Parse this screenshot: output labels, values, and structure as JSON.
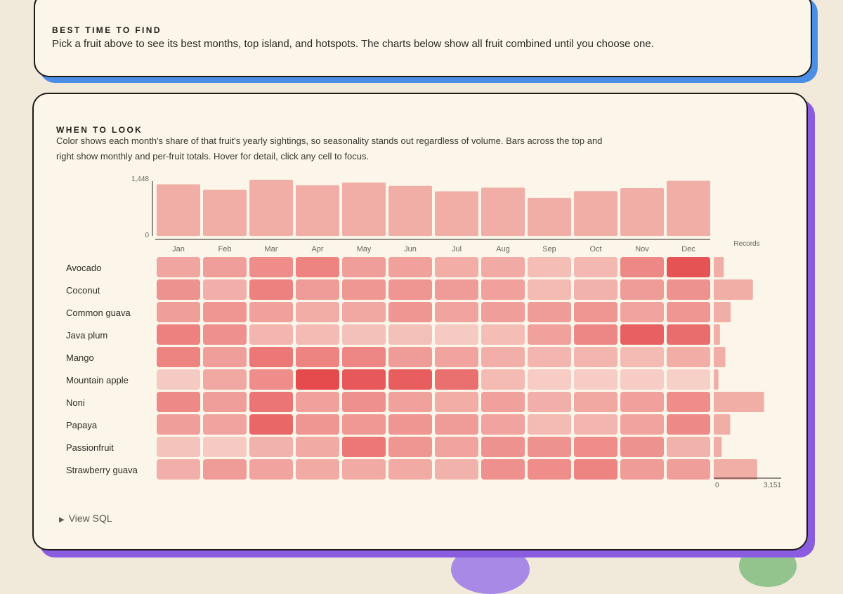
{
  "top_card": {
    "eyebrow": "BEST TIME TO FIND",
    "text": "Pick a fruit above to see its best months, top island, and hotspots. The charts below show all fruit combined until you choose one."
  },
  "main_card": {
    "eyebrow": "WHEN TO LOOK",
    "description": "Color shows each month's share of that fruit's yearly sightings, so seasonality stands out regardless of volume. Bars across the top and right show monthly and per-fruit totals. Hover for detail, click any cell to focus.",
    "view_sql_label": "View SQL"
  },
  "colors": {
    "bar": "#f0aea6",
    "cell_low": "#f7d8cf",
    "cell_high": "#e5474a",
    "axis": "#2a2722",
    "tick_text": "#6a665f",
    "top_card_shadow": "#4b8ee6",
    "main_card_shadow": "#8a5ce0"
  },
  "chart_data": {
    "type": "heatmap",
    "months": [
      "Jan",
      "Feb",
      "Mar",
      "Apr",
      "May",
      "Jun",
      "Jul",
      "Aug",
      "Sep",
      "Oct",
      "Nov",
      "Dec"
    ],
    "fruits": [
      "Avocado",
      "Coconut",
      "Common guava",
      "Java plum",
      "Mango",
      "Mountain apple",
      "Noni",
      "Papaya",
      "Passionfruit",
      "Strawberry guava"
    ],
    "month_totals": {
      "values": [
        1330,
        1190,
        1448,
        1305,
        1375,
        1290,
        1150,
        1245,
        980,
        1155,
        1230,
        1420
      ],
      "ylim": [
        0,
        1448
      ],
      "tick_labels": [
        "0",
        "1,448"
      ]
    },
    "fruit_totals": {
      "label": "Records",
      "values": [
        470,
        1830,
        790,
        290,
        540,
        220,
        2350,
        770,
        370,
        2030
      ],
      "xlim": [
        0,
        3151
      ],
      "tick_labels": [
        "0",
        "3,151"
      ]
    },
    "share_intensity": [
      [
        0.35,
        0.4,
        0.52,
        0.58,
        0.4,
        0.38,
        0.3,
        0.32,
        0.18,
        0.22,
        0.55,
        0.92
      ],
      [
        0.48,
        0.28,
        0.6,
        0.42,
        0.45,
        0.46,
        0.42,
        0.38,
        0.2,
        0.26,
        0.42,
        0.48
      ],
      [
        0.4,
        0.46,
        0.38,
        0.3,
        0.34,
        0.46,
        0.36,
        0.4,
        0.42,
        0.46,
        0.36,
        0.46
      ],
      [
        0.6,
        0.5,
        0.24,
        0.2,
        0.16,
        0.16,
        0.1,
        0.18,
        0.38,
        0.56,
        0.82,
        0.74
      ],
      [
        0.58,
        0.4,
        0.66,
        0.58,
        0.56,
        0.42,
        0.36,
        0.28,
        0.24,
        0.24,
        0.2,
        0.3
      ],
      [
        0.1,
        0.34,
        0.52,
        0.98,
        0.88,
        0.84,
        0.72,
        0.2,
        0.08,
        0.08,
        0.08,
        0.06
      ],
      [
        0.54,
        0.4,
        0.68,
        0.38,
        0.5,
        0.38,
        0.3,
        0.38,
        0.28,
        0.34,
        0.38,
        0.52
      ],
      [
        0.4,
        0.36,
        0.78,
        0.46,
        0.44,
        0.46,
        0.42,
        0.36,
        0.2,
        0.24,
        0.36,
        0.54
      ],
      [
        0.14,
        0.1,
        0.26,
        0.32,
        0.66,
        0.46,
        0.36,
        0.48,
        0.48,
        0.52,
        0.48,
        0.26
      ],
      [
        0.28,
        0.42,
        0.36,
        0.32,
        0.32,
        0.32,
        0.26,
        0.5,
        0.52,
        0.58,
        0.42,
        0.4
      ]
    ]
  }
}
